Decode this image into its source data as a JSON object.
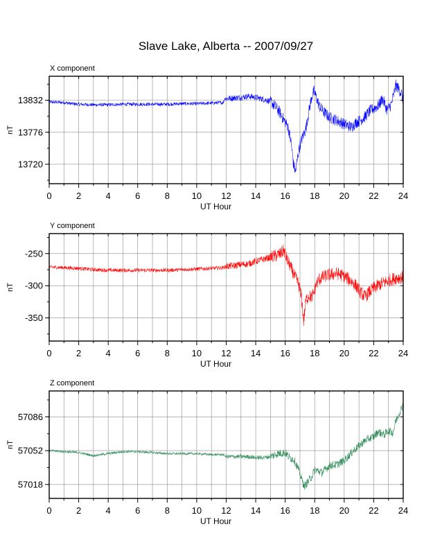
{
  "title": "Slave Lake, Alberta -- 2007/09/27",
  "chart_data": [
    {
      "type": "line",
      "panel_title": "X component",
      "xlabel": "UT Hour",
      "ylabel": "nT",
      "xlim": [
        0,
        24
      ],
      "ylim": [
        13686,
        13874
      ],
      "xticks": [
        0,
        2,
        4,
        6,
        8,
        10,
        12,
        14,
        16,
        18,
        20,
        22,
        24
      ],
      "yticks": [
        13832,
        13776,
        13720
      ],
      "grid": true,
      "color": "#0000ff",
      "noise_amp": 3,
      "series": [
        {
          "x": [
            0,
            1,
            1.5,
            2,
            3,
            4,
            5,
            6,
            7,
            8,
            9,
            10,
            11,
            11.8,
            11.9,
            12,
            12.5,
            13,
            13.5,
            14,
            14.5,
            15,
            15.3,
            15.6,
            15.9,
            16.2,
            16.4,
            16.55,
            16.7,
            16.9,
            17.1,
            17.4,
            17.6,
            17.8,
            17.95,
            18.1,
            18.3,
            18.6,
            19,
            19.4,
            19.8,
            20.2,
            20.5,
            20.8,
            21.1,
            21.4,
            21.7,
            22,
            22.3,
            22.6,
            22.9,
            23.2,
            23.5,
            23.7,
            23.9,
            24
          ],
          "y": [
            13829,
            13828,
            13826,
            13825,
            13824,
            13824,
            13825,
            13825,
            13825,
            13825,
            13826,
            13826,
            13827,
            13828,
            13835,
            13835,
            13836,
            13837,
            13839,
            13837,
            13834,
            13830,
            13822,
            13812,
            13798,
            13785,
            13758,
            13722,
            13706,
            13742,
            13762,
            13782,
            13812,
            13838,
            13848,
            13838,
            13822,
            13812,
            13802,
            13798,
            13793,
            13788,
            13785,
            13793,
            13797,
            13803,
            13812,
            13818,
            13822,
            13835,
            13815,
            13825,
            13858,
            13852,
            13843,
            13826
          ]
        }
      ]
    },
    {
      "type": "line",
      "panel_title": "Y component",
      "xlabel": "UT Hour",
      "ylabel": "nT",
      "xlim": [
        0,
        24
      ],
      "ylim": [
        -386,
        -219
      ],
      "xticks": [
        0,
        2,
        4,
        6,
        8,
        10,
        12,
        14,
        16,
        18,
        20,
        22,
        24
      ],
      "yticks": [
        -250,
        -300,
        -350
      ],
      "grid": true,
      "color": "#ff0000",
      "noise_amp": 3,
      "series": [
        {
          "x": [
            0,
            1,
            2,
            3,
            4,
            5,
            6,
            7,
            8,
            9,
            10,
            11,
            11.8,
            12,
            12.5,
            13,
            13.5,
            14,
            14.5,
            15,
            15.4,
            15.7,
            15.9,
            16.1,
            16.3,
            16.6,
            16.9,
            17.1,
            17.25,
            17.4,
            17.6,
            17.8,
            17.95,
            18.1,
            18.3,
            18.6,
            19,
            19.5,
            20,
            20.5,
            20.8,
            21.1,
            21.4,
            21.7,
            22,
            22.5,
            23,
            23.5,
            24
          ],
          "y": [
            -271,
            -272,
            -273,
            -275,
            -276,
            -276,
            -276,
            -276,
            -276,
            -275,
            -274,
            -273,
            -272,
            -270,
            -269,
            -267,
            -266,
            -262,
            -259,
            -256,
            -253,
            -250,
            -245,
            -258,
            -268,
            -283,
            -297,
            -318,
            -355,
            -323,
            -315,
            -318,
            -310,
            -298,
            -290,
            -286,
            -283,
            -281,
            -285,
            -293,
            -300,
            -310,
            -317,
            -310,
            -304,
            -297,
            -292,
            -288,
            -287
          ]
        }
      ]
    },
    {
      "type": "line",
      "panel_title": "Z component",
      "xlabel": "UT Hour",
      "ylabel": "nT",
      "xlim": [
        0,
        24
      ],
      "ylim": [
        57004,
        57112
      ],
      "xticks": [
        0,
        2,
        4,
        6,
        8,
        10,
        12,
        14,
        16,
        18,
        20,
        22,
        24
      ],
      "yticks": [
        57086,
        57052,
        57018
      ],
      "grid": true,
      "color": "#2e8b57",
      "noise_amp": 1.2,
      "series": [
        {
          "x": [
            0,
            1,
            2,
            3,
            4,
            5,
            6,
            7,
            8,
            9,
            10,
            11,
            11.8,
            12,
            12.5,
            13,
            13.5,
            14,
            14.5,
            15,
            15.5,
            16,
            16.3,
            16.6,
            16.9,
            17.1,
            17.3,
            17.5,
            17.8,
            18,
            18.5,
            19,
            19.5,
            20,
            20.5,
            21,
            21.5,
            22,
            22.3,
            22.7,
            23,
            23.3,
            23.5,
            23.8,
            24
          ],
          "y": [
            57052,
            57051,
            57050,
            57047,
            57049,
            57051,
            57051,
            57050,
            57049,
            57049,
            57049,
            57048,
            57048,
            57046,
            57046,
            57046,
            57046,
            57045,
            57045,
            57046,
            57049,
            57050,
            57045,
            57043,
            57033,
            57024,
            57016,
            57020,
            57026,
            57033,
            57030,
            57037,
            57038,
            57042,
            57050,
            57057,
            57063,
            57066,
            57071,
            57068,
            57072,
            57070,
            57082,
            57092,
            57099
          ]
        }
      ]
    }
  ]
}
